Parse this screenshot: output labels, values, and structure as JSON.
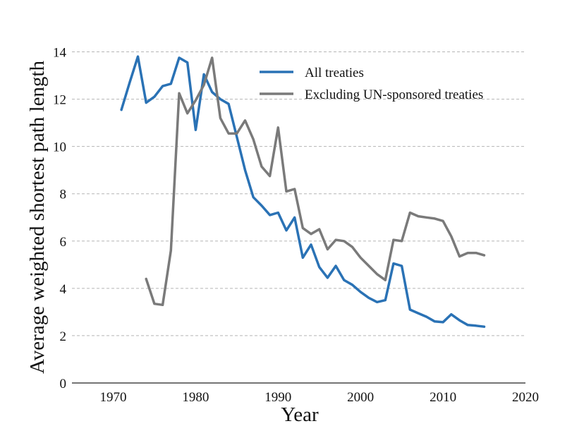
{
  "chart_data": {
    "type": "line",
    "xlabel": "Year",
    "ylabel": "Average weighted shortest path length",
    "xlim": [
      1965,
      2020
    ],
    "ylim": [
      0,
      14
    ],
    "x_ticks": [
      1970,
      1980,
      1990,
      2000,
      2010,
      2020
    ],
    "y_ticks": [
      0,
      2,
      4,
      6,
      8,
      10,
      12,
      14
    ],
    "grid": "horizontal dashed",
    "legend_position": "top-right",
    "series": [
      {
        "name": "All treaties",
        "color": "#2a72b5",
        "points": [
          [
            1971,
            11.55
          ],
          [
            1972,
            12.7
          ],
          [
            1973,
            13.8
          ],
          [
            1974,
            11.85
          ],
          [
            1975,
            12.1
          ],
          [
            1976,
            12.55
          ],
          [
            1977,
            12.65
          ],
          [
            1978,
            13.75
          ],
          [
            1979,
            13.55
          ],
          [
            1980,
            10.7
          ],
          [
            1981,
            13.05
          ],
          [
            1982,
            12.3
          ],
          [
            1983,
            12.0
          ],
          [
            1984,
            11.8
          ],
          [
            1985,
            10.4
          ],
          [
            1986,
            9.0
          ],
          [
            1987,
            7.85
          ],
          [
            1988,
            7.5
          ],
          [
            1989,
            7.1
          ],
          [
            1990,
            7.2
          ],
          [
            1991,
            6.45
          ],
          [
            1992,
            7.0
          ],
          [
            1993,
            5.3
          ],
          [
            1994,
            5.85
          ],
          [
            1995,
            4.9
          ],
          [
            1996,
            4.45
          ],
          [
            1997,
            4.95
          ],
          [
            1998,
            4.35
          ],
          [
            1999,
            4.15
          ],
          [
            2000,
            3.85
          ],
          [
            2001,
            3.6
          ],
          [
            2002,
            3.42
          ],
          [
            2003,
            3.5
          ],
          [
            2004,
            5.05
          ],
          [
            2005,
            4.95
          ],
          [
            2006,
            3.1
          ],
          [
            2007,
            2.95
          ],
          [
            2008,
            2.8
          ],
          [
            2009,
            2.6
          ],
          [
            2010,
            2.57
          ],
          [
            2011,
            2.9
          ],
          [
            2012,
            2.65
          ],
          [
            2013,
            2.45
          ],
          [
            2014,
            2.42
          ],
          [
            2015,
            2.38
          ]
        ]
      },
      {
        "name": "Excluding UN-sponsored treaties",
        "color": "#7a7a7a",
        "points": [
          [
            1974,
            4.4
          ],
          [
            1975,
            3.35
          ],
          [
            1976,
            3.3
          ],
          [
            1977,
            5.6
          ],
          [
            1978,
            12.25
          ],
          [
            1979,
            11.4
          ],
          [
            1980,
            11.95
          ],
          [
            1981,
            12.6
          ],
          [
            1982,
            13.75
          ],
          [
            1983,
            11.2
          ],
          [
            1984,
            10.55
          ],
          [
            1985,
            10.55
          ],
          [
            1986,
            11.1
          ],
          [
            1987,
            10.3
          ],
          [
            1988,
            9.15
          ],
          [
            1989,
            8.75
          ],
          [
            1990,
            10.8
          ],
          [
            1991,
            8.1
          ],
          [
            1992,
            8.2
          ],
          [
            1993,
            6.55
          ],
          [
            1994,
            6.3
          ],
          [
            1995,
            6.5
          ],
          [
            1996,
            5.65
          ],
          [
            1997,
            6.05
          ],
          [
            1998,
            6.0
          ],
          [
            1999,
            5.75
          ],
          [
            2000,
            5.3
          ],
          [
            2001,
            4.95
          ],
          [
            2002,
            4.6
          ],
          [
            2003,
            4.35
          ],
          [
            2004,
            6.05
          ],
          [
            2005,
            6.0
          ],
          [
            2006,
            7.2
          ],
          [
            2007,
            7.05
          ],
          [
            2008,
            7.0
          ],
          [
            2009,
            6.95
          ],
          [
            2010,
            6.85
          ],
          [
            2011,
            6.2
          ],
          [
            2012,
            5.35
          ],
          [
            2013,
            5.5
          ],
          [
            2014,
            5.5
          ],
          [
            2015,
            5.4
          ]
        ]
      }
    ]
  }
}
